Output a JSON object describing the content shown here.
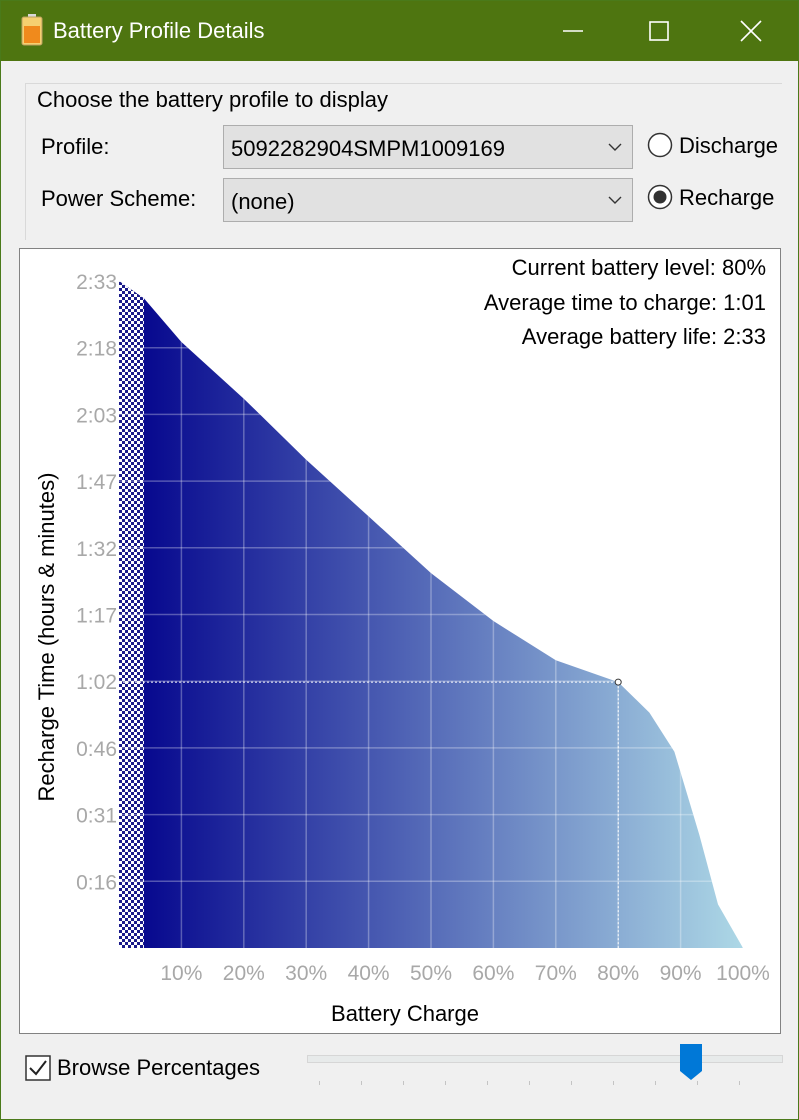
{
  "window": {
    "title": "Battery Profile Details",
    "titlebar_color": "#4e7510",
    "icons": [
      "battery-app-icon",
      "minimize-icon",
      "maximize-icon",
      "close-icon"
    ]
  },
  "profile_group": {
    "title": "Choose the battery profile to display",
    "profile_label": "Profile:",
    "profile_value": "5092282904SMPM1009169",
    "scheme_label": "Power Scheme:",
    "scheme_value": "(none)",
    "mode_options": [
      {
        "label": "Discharge",
        "selected": false
      },
      {
        "label": "Recharge",
        "selected": true
      }
    ]
  },
  "chart_info": {
    "current_level": "Current battery level: 80%",
    "avg_charge": "Average time to charge: 1:01",
    "avg_life": "Average battery life: 2:33"
  },
  "chart_data": {
    "type": "area",
    "xlabel": "Battery Charge",
    "ylabel": "Recharge Time (hours & minutes)",
    "x_ticks": [
      "10%",
      "20%",
      "30%",
      "40%",
      "50%",
      "60%",
      "70%",
      "80%",
      "90%",
      "100%"
    ],
    "y_ticks": [
      "0:16",
      "0:31",
      "0:46",
      "1:02",
      "1:17",
      "1:32",
      "1:47",
      "2:03",
      "2:18",
      "2:33"
    ],
    "xlim": [
      0,
      100
    ],
    "ylim_minutes": [
      0,
      153
    ],
    "grid": true,
    "fill_gradient": [
      "#00008b",
      "#add8e6"
    ],
    "points": [
      {
        "x": 0,
        "y": 153
      },
      {
        "x": 4,
        "y": 149
      },
      {
        "x": 10,
        "y": 139
      },
      {
        "x": 20,
        "y": 126
      },
      {
        "x": 30,
        "y": 112
      },
      {
        "x": 40,
        "y": 99
      },
      {
        "x": 50,
        "y": 86
      },
      {
        "x": 60,
        "y": 75
      },
      {
        "x": 70,
        "y": 66
      },
      {
        "x": 80,
        "y": 61
      },
      {
        "x": 85,
        "y": 54
      },
      {
        "x": 89,
        "y": 45
      },
      {
        "x": 93,
        "y": 26
      },
      {
        "x": 96,
        "y": 10
      },
      {
        "x": 100,
        "y": 0
      }
    ],
    "marker": {
      "x": 80,
      "y": 61
    },
    "hatched_region_max_x": 4
  },
  "browse": {
    "label": "Browse Percentages",
    "checked": true,
    "slider_value_percent": 80
  }
}
